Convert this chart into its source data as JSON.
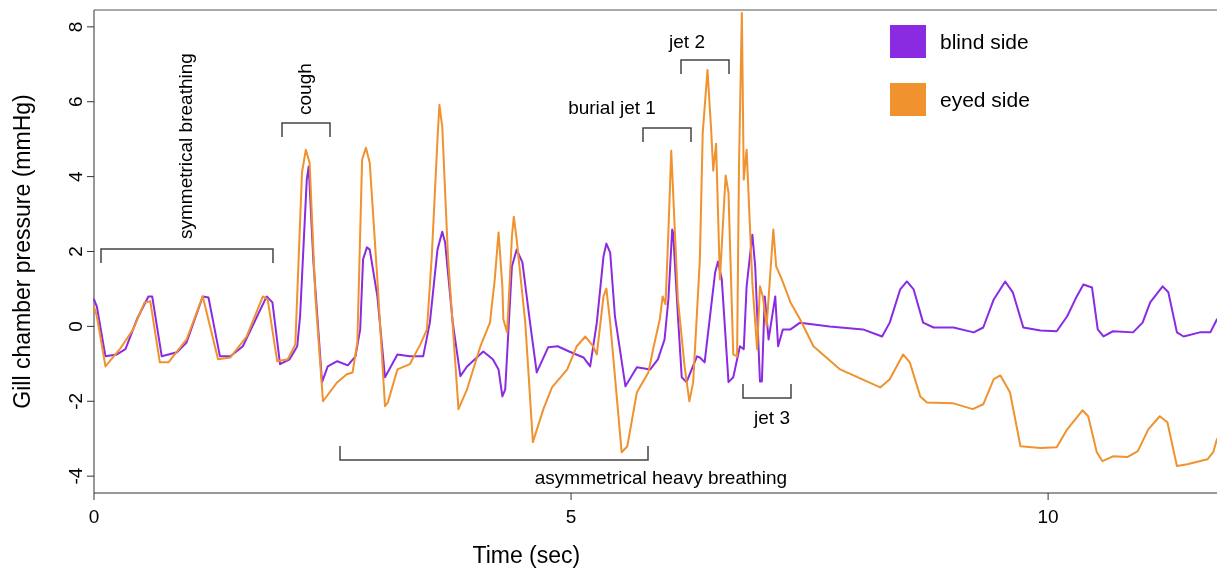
{
  "chart_data": {
    "type": "line",
    "xlabel": "Time (sec)",
    "ylabel": "Gill chamber pressure (mmHg)",
    "xlim": [
      0,
      11.77
    ],
    "ylim": [
      -4.45,
      8.45
    ],
    "xticks": [
      0,
      5,
      10
    ],
    "yticks": [
      -4,
      -2,
      0,
      2,
      4,
      6,
      8
    ],
    "grid": false,
    "legend": "top right",
    "line_style": "solid",
    "marker": "none",
    "annotations": [
      "symmetrical breathing",
      "cough",
      "burial jet 1",
      "jet 2",
      "jet 3",
      "asymmetrical heavy breathing"
    ],
    "series": [
      {
        "name": "blind side",
        "color": "#8a2be2",
        "x": [
          0,
          0.03,
          0.12,
          0.24,
          0.33,
          0.45,
          0.57,
          0.61,
          0.71,
          0.87,
          0.97,
          1.14,
          1.2,
          1.32,
          1.43,
          1.56,
          1.81,
          1.87,
          1.95,
          2.05,
          2.13,
          2.16,
          2.23,
          2.25,
          2.3,
          2.39,
          2.45,
          2.55,
          2.66,
          2.74,
          2.79,
          2.82,
          2.86,
          2.89,
          2.97,
          3.05,
          3.18,
          3.31,
          3.45,
          3.52,
          3.6,
          3.65,
          3.68,
          3.76,
          3.84,
          3.91,
          4.08,
          4.18,
          4.24,
          4.28,
          4.31,
          4.38,
          4.43,
          4.49,
          4.57,
          4.64,
          4.76,
          4.86,
          4.98,
          5.13,
          5.2,
          5.27,
          5.34,
          5.37,
          5.41,
          5.46,
          5.57,
          5.69,
          5.83,
          5.91,
          5.98,
          6.02,
          6.06,
          6.07,
          6.12,
          6.16,
          6.21,
          6.32,
          6.35,
          6.4,
          6.51,
          6.54,
          6.58,
          6.65,
          6.7,
          6.77,
          6.81,
          6.84,
          6.9,
          6.93,
          6.98,
          7.0,
          7.03,
          7.07,
          7.14,
          7.17,
          7.22,
          7.3,
          7.4,
          7.71,
          8.06,
          8.26,
          8.34,
          8.45,
          8.52,
          8.59,
          8.69,
          8.8,
          9.01,
          9.22,
          9.32,
          9.43,
          9.55,
          9.63,
          9.74,
          9.92,
          10.09,
          10.2,
          10.3,
          10.37,
          10.46,
          10.52,
          10.58,
          10.68,
          10.89,
          10.99,
          11.07,
          11.2,
          11.26,
          11.35,
          11.42,
          11.59,
          11.7,
          11.77
        ],
        "values": [
          0.72,
          0.53,
          -0.8,
          -0.75,
          -0.61,
          0.19,
          0.8,
          0.8,
          -0.8,
          -0.69,
          -0.43,
          0.8,
          0.77,
          -0.8,
          -0.8,
          -0.53,
          0.8,
          0.64,
          -1.01,
          -0.88,
          -0.53,
          0.27,
          3.92,
          4.27,
          1.71,
          -1.49,
          -1.07,
          -0.93,
          -1.04,
          -0.8,
          -0.08,
          1.79,
          2.11,
          2.05,
          0.8,
          -1.36,
          -0.75,
          -0.8,
          -0.8,
          0.1,
          2.05,
          2.53,
          2.24,
          0.1,
          -1.33,
          -1.07,
          -0.67,
          -0.88,
          -1.15,
          -1.87,
          -1.68,
          1.6,
          2.05,
          1.71,
          0.1,
          -1.23,
          -0.56,
          -0.53,
          -0.67,
          -0.83,
          -1.07,
          0.1,
          1.87,
          2.21,
          1.97,
          0.27,
          -1.6,
          -1.09,
          -1.15,
          -0.88,
          -0.35,
          0.72,
          2.59,
          2.5,
          0.27,
          -1.36,
          -1.49,
          -0.8,
          -0.83,
          -0.96,
          1.44,
          1.73,
          1.25,
          -1.49,
          -1.36,
          -0.53,
          -0.61,
          1.07,
          2.45,
          1.6,
          -1.47,
          -1.47,
          0.8,
          -0.35,
          0.8,
          -0.53,
          -0.08,
          -0.08,
          0.1,
          0,
          -0.08,
          -0.27,
          0.1,
          0.99,
          1.2,
          0.99,
          0.1,
          -0.03,
          -0.03,
          -0.16,
          -0.03,
          0.72,
          1.2,
          0.91,
          -0.03,
          -0.11,
          -0.13,
          0.27,
          0.8,
          1.12,
          1.04,
          -0.08,
          -0.27,
          -0.13,
          -0.16,
          0.1,
          0.64,
          1.07,
          0.91,
          -0.16,
          -0.27,
          -0.16,
          -0.16,
          0.19
        ]
      },
      {
        "name": "eyed side",
        "color": "#f0922e",
        "x": [
          0,
          0.03,
          0.12,
          0.27,
          0.41,
          0.53,
          0.59,
          0.69,
          0.78,
          0.97,
          1.14,
          1.3,
          1.43,
          1.6,
          1.77,
          1.82,
          1.92,
          2.03,
          2.11,
          2.18,
          2.22,
          2.26,
          2.32,
          2.4,
          2.55,
          2.65,
          2.71,
          2.76,
          2.81,
          2.85,
          2.89,
          2.97,
          3.05,
          3.08,
          3.18,
          3.31,
          3.42,
          3.49,
          3.54,
          3.6,
          3.62,
          3.65,
          3.71,
          3.82,
          3.91,
          4.05,
          4.15,
          4.2,
          4.24,
          4.28,
          4.29,
          4.33,
          4.38,
          4.4,
          4.43,
          4.52,
          4.6,
          4.71,
          4.8,
          4.96,
          5.06,
          5.15,
          5.23,
          5.27,
          5.34,
          5.37,
          5.41,
          5.53,
          5.59,
          5.69,
          5.81,
          5.86,
          5.93,
          5.96,
          5.99,
          6.02,
          6.05,
          6.07,
          6.12,
          6.19,
          6.24,
          6.28,
          6.35,
          6.38,
          6.43,
          6.47,
          6.49,
          6.52,
          6.56,
          6.62,
          6.65,
          6.7,
          6.74,
          6.76,
          6.79,
          6.81,
          6.84,
          6.9,
          6.95,
          6.98,
          7.01,
          7.05,
          7.12,
          7.15,
          7.21,
          7.3,
          7.4,
          7.54,
          7.82,
          8.1,
          8.24,
          8.34,
          8.48,
          8.55,
          8.66,
          8.73,
          9.0,
          9.21,
          9.32,
          9.43,
          9.5,
          9.6,
          9.71,
          9.92,
          10.09,
          10.2,
          10.36,
          10.42,
          10.51,
          10.57,
          10.68,
          10.83,
          10.94,
          11.05,
          11.17,
          11.25,
          11.35,
          11.46,
          11.67,
          11.73,
          11.77
        ],
        "values": [
          0.53,
          0.27,
          -1.07,
          -0.61,
          -0.08,
          0.64,
          0.67,
          -0.96,
          -0.96,
          -0.35,
          0.8,
          -0.88,
          -0.83,
          -0.27,
          0.8,
          0.72,
          -0.93,
          -0.88,
          -0.48,
          4.11,
          4.72,
          4.37,
          0.8,
          -2.0,
          -1.49,
          -1.28,
          -1.23,
          -0.43,
          4.45,
          4.77,
          4.37,
          1.25,
          -2.13,
          -2.03,
          -1.15,
          -1.01,
          -0.48,
          -0.08,
          1.87,
          4.99,
          5.92,
          5.33,
          1.87,
          -2.21,
          -1.68,
          -0.53,
          0.1,
          1.25,
          2.51,
          1.07,
          0.19,
          -0.16,
          2.4,
          2.93,
          2.32,
          0.1,
          -3.09,
          -2.21,
          -1.63,
          -1.15,
          -0.53,
          -0.27,
          -0.53,
          -0.75,
          0.8,
          1.01,
          0.1,
          -3.36,
          -3.2,
          -1.76,
          -1.23,
          -0.61,
          0.19,
          0.8,
          0.59,
          2.51,
          4.69,
          3.57,
          0.72,
          -1.07,
          -2.0,
          -1.49,
          1.79,
          5.17,
          6.85,
          5.17,
          4.16,
          4.88,
          1.25,
          4.03,
          3.57,
          -0.75,
          -0.8,
          4.27,
          8.37,
          3.92,
          4.72,
          1.17,
          -0.61,
          1.07,
          0.8,
          0,
          2.59,
          1.6,
          1.25,
          0.64,
          0.19,
          -0.53,
          -1.15,
          -1.47,
          -1.63,
          -1.41,
          -0.75,
          -0.96,
          -1.87,
          -2.03,
          -2.05,
          -2.21,
          -2.08,
          -1.41,
          -1.31,
          -1.76,
          -3.2,
          -3.25,
          -3.23,
          -2.75,
          -2.24,
          -2.4,
          -3.36,
          -3.6,
          -3.47,
          -3.49,
          -3.33,
          -2.75,
          -2.4,
          -2.56,
          -3.73,
          -3.68,
          -3.55,
          -3.36,
          -3.01
        ]
      }
    ]
  }
}
